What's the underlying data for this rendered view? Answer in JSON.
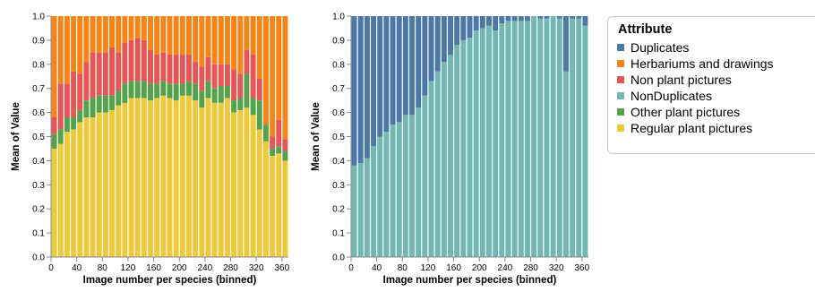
{
  "legend": {
    "title": "Attribute",
    "entries": [
      {
        "label": "Duplicates",
        "color": "#4c78a8"
      },
      {
        "label": "Herbariums and drawings",
        "color": "#f58518"
      },
      {
        "label": "Non plant pictures",
        "color": "#e45756"
      },
      {
        "label": "NonDuplicates",
        "color": "#72b7b2"
      },
      {
        "label": "Other plant pictures",
        "color": "#54a24b"
      },
      {
        "label": "Regular plant pictures",
        "color": "#eeca3b"
      }
    ]
  },
  "chart_data": [
    {
      "type": "bar",
      "stacked": true,
      "xlabel": "Image number per species (binned)",
      "ylabel": "Mean of Value",
      "ylim": [
        0,
        1
      ],
      "yticks": [
        0.0,
        0.1,
        0.2,
        0.3,
        0.4,
        0.5,
        0.6,
        0.7,
        0.8,
        0.9,
        1.0
      ],
      "xticks": [
        0,
        40,
        80,
        120,
        160,
        200,
        240,
        280,
        320,
        360
      ],
      "xlim": [
        0,
        370
      ],
      "bin_width": 10,
      "x": [
        0,
        10,
        20,
        30,
        40,
        50,
        60,
        70,
        80,
        90,
        100,
        110,
        120,
        130,
        140,
        150,
        160,
        170,
        180,
        190,
        200,
        210,
        220,
        230,
        240,
        250,
        260,
        270,
        280,
        290,
        300,
        310,
        320,
        330,
        340,
        350,
        360
      ],
      "series": [
        {
          "name": "Regular plant pictures",
          "color": "#eeca3b",
          "values": [
            0.45,
            0.47,
            0.52,
            0.53,
            0.56,
            0.58,
            0.58,
            0.6,
            0.6,
            0.61,
            0.63,
            0.64,
            0.66,
            0.66,
            0.66,
            0.65,
            0.66,
            0.67,
            0.66,
            0.65,
            0.67,
            0.67,
            0.65,
            0.62,
            0.66,
            0.64,
            0.64,
            0.66,
            0.6,
            0.61,
            0.62,
            0.59,
            0.53,
            0.48,
            0.42,
            0.43,
            0.4
          ]
        },
        {
          "name": "Other plant pictures",
          "color": "#54a24b",
          "values": [
            0.06,
            0.06,
            0.06,
            0.05,
            0.05,
            0.07,
            0.08,
            0.07,
            0.07,
            0.06,
            0.06,
            0.08,
            0.07,
            0.07,
            0.07,
            0.07,
            0.06,
            0.06,
            0.06,
            0.07,
            0.05,
            0.06,
            0.07,
            0.07,
            0.07,
            0.06,
            0.07,
            0.05,
            0.05,
            0.05,
            0.14,
            0.07,
            0.12,
            0.07,
            0.03,
            0.03,
            0.04
          ]
        },
        {
          "name": "Non plant pictures",
          "color": "#e45756",
          "values": [
            0.07,
            0.19,
            0.14,
            0.19,
            0.15,
            0.16,
            0.19,
            0.18,
            0.18,
            0.2,
            0.16,
            0.17,
            0.17,
            0.18,
            0.17,
            0.14,
            0.12,
            0.12,
            0.12,
            0.12,
            0.12,
            0.11,
            0.09,
            0.1,
            0.1,
            0.1,
            0.09,
            0.09,
            0.13,
            0.1,
            0.1,
            0.18,
            0.09,
            0.0,
            0.05,
            0.11,
            0.05
          ]
        },
        {
          "name": "Herbariums and drawings",
          "color": "#f58518",
          "values": [
            0.42,
            0.28,
            0.28,
            0.23,
            0.24,
            0.19,
            0.15,
            0.15,
            0.15,
            0.13,
            0.15,
            0.11,
            0.1,
            0.09,
            0.1,
            0.14,
            0.16,
            0.15,
            0.16,
            0.16,
            0.16,
            0.16,
            0.19,
            0.21,
            0.17,
            0.2,
            0.2,
            0.2,
            0.22,
            0.24,
            0.14,
            0.16,
            0.26,
            0.45,
            0.5,
            0.43,
            0.51
          ]
        }
      ]
    },
    {
      "type": "bar",
      "stacked": true,
      "xlabel": "Image number per species (binned)",
      "ylabel": "Mean of Value",
      "ylim": [
        0,
        1
      ],
      "yticks": [
        0.0,
        0.1,
        0.2,
        0.3,
        0.4,
        0.5,
        0.6,
        0.7,
        0.8,
        0.9,
        1.0
      ],
      "xticks": [
        0,
        40,
        80,
        120,
        160,
        200,
        240,
        280,
        320,
        360
      ],
      "xlim": [
        0,
        370
      ],
      "bin_width": 10,
      "x": [
        0,
        10,
        20,
        30,
        40,
        50,
        60,
        70,
        80,
        90,
        100,
        110,
        120,
        130,
        140,
        150,
        160,
        170,
        180,
        190,
        200,
        210,
        220,
        230,
        240,
        250,
        260,
        270,
        280,
        290,
        300,
        310,
        320,
        330,
        340,
        350,
        360
      ],
      "series": [
        {
          "name": "NonDuplicates",
          "color": "#72b7b2",
          "values": [
            0.38,
            0.39,
            0.41,
            0.46,
            0.5,
            0.52,
            0.55,
            0.56,
            0.59,
            0.59,
            0.62,
            0.67,
            0.73,
            0.77,
            0.81,
            0.84,
            0.88,
            0.9,
            0.91,
            0.94,
            0.95,
            0.96,
            0.94,
            0.97,
            0.98,
            0.98,
            0.98,
            0.98,
            1.0,
            0.99,
            0.99,
            1.0,
            0.99,
            0.77,
            0.99,
            0.99,
            0.96
          ]
        },
        {
          "name": "Duplicates",
          "color": "#4c78a8",
          "values": [
            0.62,
            0.61,
            0.59,
            0.54,
            0.5,
            0.48,
            0.45,
            0.44,
            0.41,
            0.41,
            0.38,
            0.33,
            0.27,
            0.23,
            0.19,
            0.16,
            0.12,
            0.1,
            0.09,
            0.06,
            0.05,
            0.04,
            0.06,
            0.03,
            0.02,
            0.02,
            0.02,
            0.02,
            0.0,
            0.01,
            0.01,
            0.0,
            0.01,
            0.23,
            0.01,
            0.01,
            0.04
          ]
        }
      ]
    }
  ]
}
